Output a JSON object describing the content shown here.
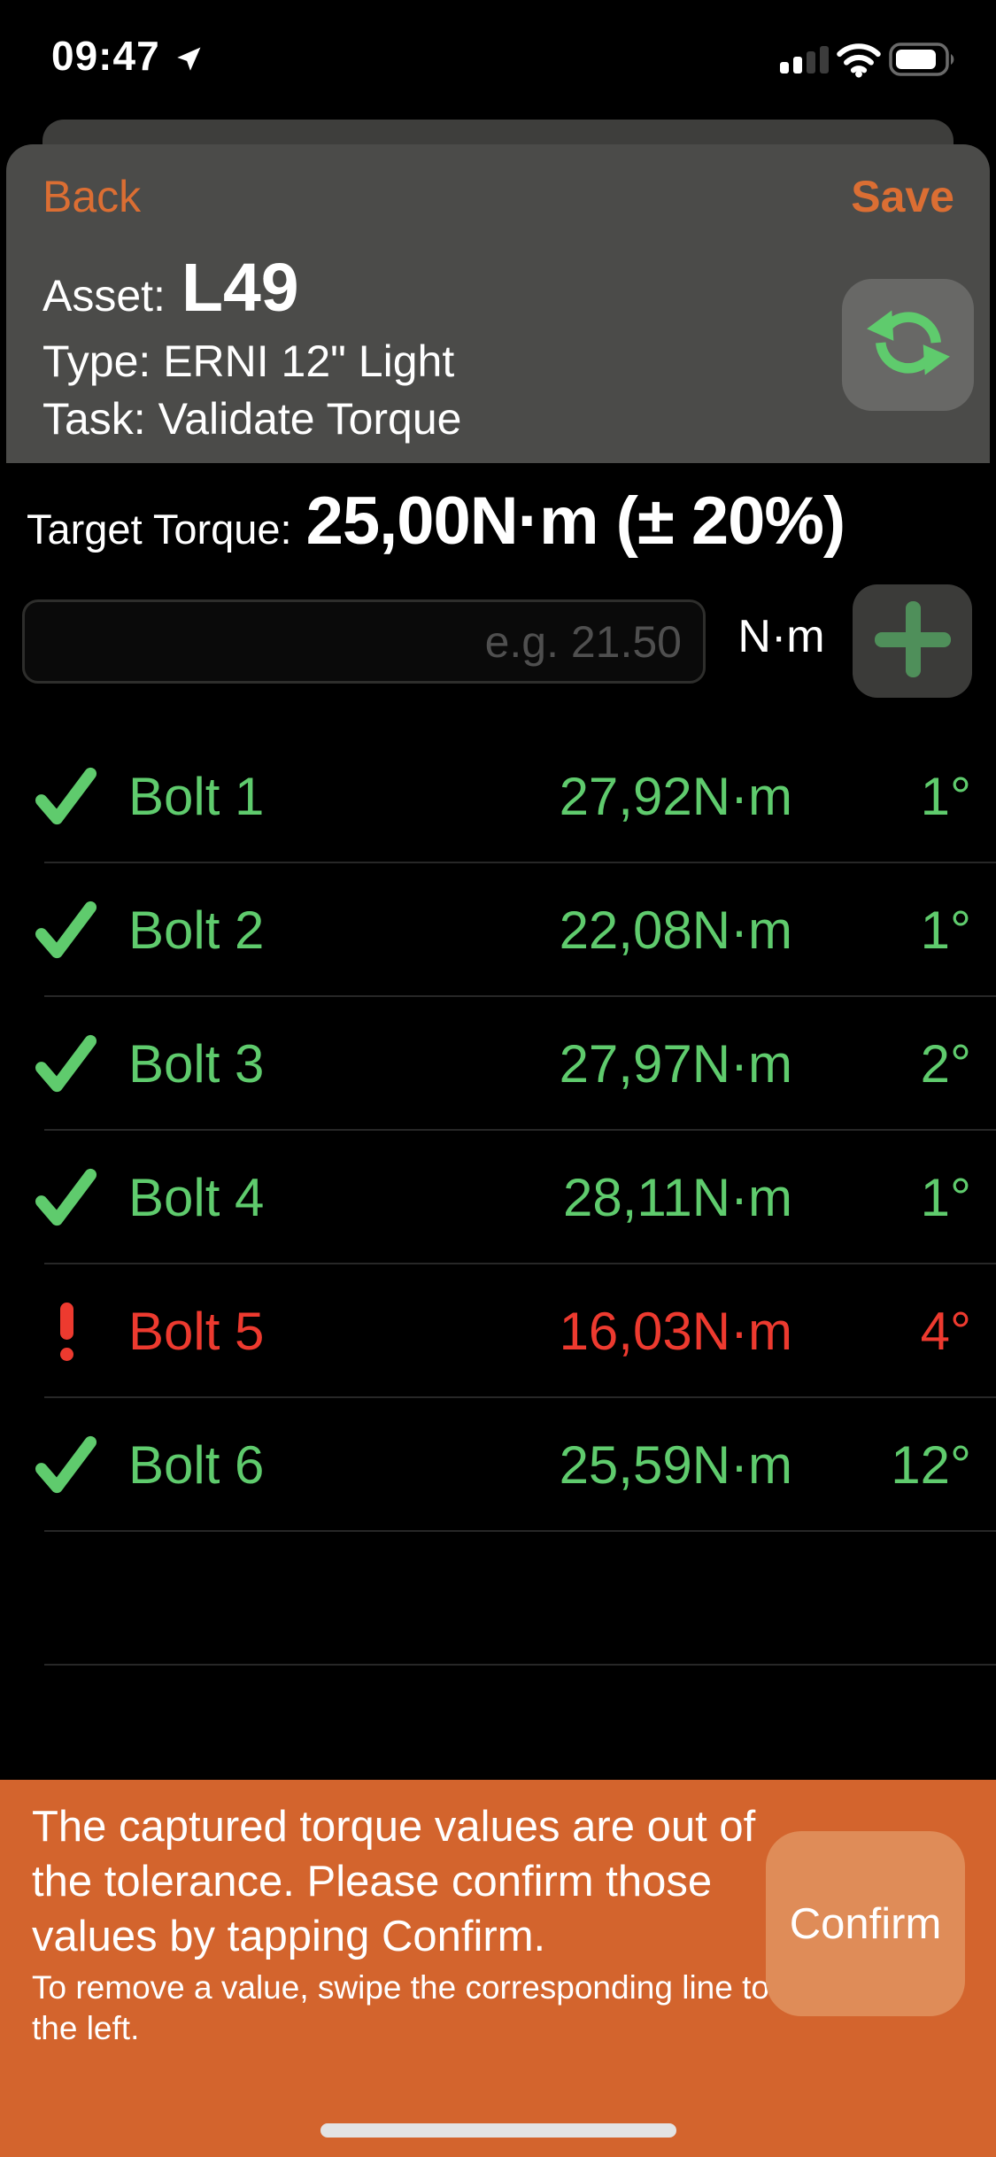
{
  "status_bar": {
    "time": "09:47"
  },
  "nav": {
    "back_label": "Back",
    "save_label": "Save"
  },
  "header": {
    "asset_label": "Asset:",
    "asset_value": "L49",
    "type_label": "Type:",
    "type_value": "ERNI 12\" Light",
    "task_label": "Task:",
    "task_value": "Validate Torque"
  },
  "target": {
    "label": "Target Torque:",
    "value": "25,00N·m (± 20%)"
  },
  "input": {
    "placeholder": "e.g. 21.50",
    "unit": "N·m"
  },
  "bolts": [
    {
      "name": "Bolt 1",
      "torque": "27,92N·m",
      "angle": "1°",
      "status": "ok"
    },
    {
      "name": "Bolt 2",
      "torque": "22,08N·m",
      "angle": "1°",
      "status": "ok"
    },
    {
      "name": "Bolt 3",
      "torque": "27,97N·m",
      "angle": "2°",
      "status": "ok"
    },
    {
      "name": "Bolt 4",
      "torque": "28,11N·m",
      "angle": "1°",
      "status": "ok"
    },
    {
      "name": "Bolt 5",
      "torque": "16,03N·m",
      "angle": "4°",
      "status": "error"
    },
    {
      "name": "Bolt 6",
      "torque": "25,59N·m",
      "angle": "12°",
      "status": "ok"
    }
  ],
  "banner": {
    "message": "The captured torque values are out of the tolerance. Please confirm those values by tapping Confirm.",
    "hint": "To remove a value, swipe the corresponding line to the left.",
    "confirm_label": "Confirm"
  },
  "colors": {
    "accent_orange": "#DB6E33",
    "banner_orange": "#D3642D",
    "confirm_button_orange": "#DF8C58",
    "green": "#5FCB6D",
    "red": "#ED3A2F",
    "plus_green": "#4F8F5A",
    "card_gray": "#4B4B49",
    "refresh_button_gray": "#686866"
  }
}
